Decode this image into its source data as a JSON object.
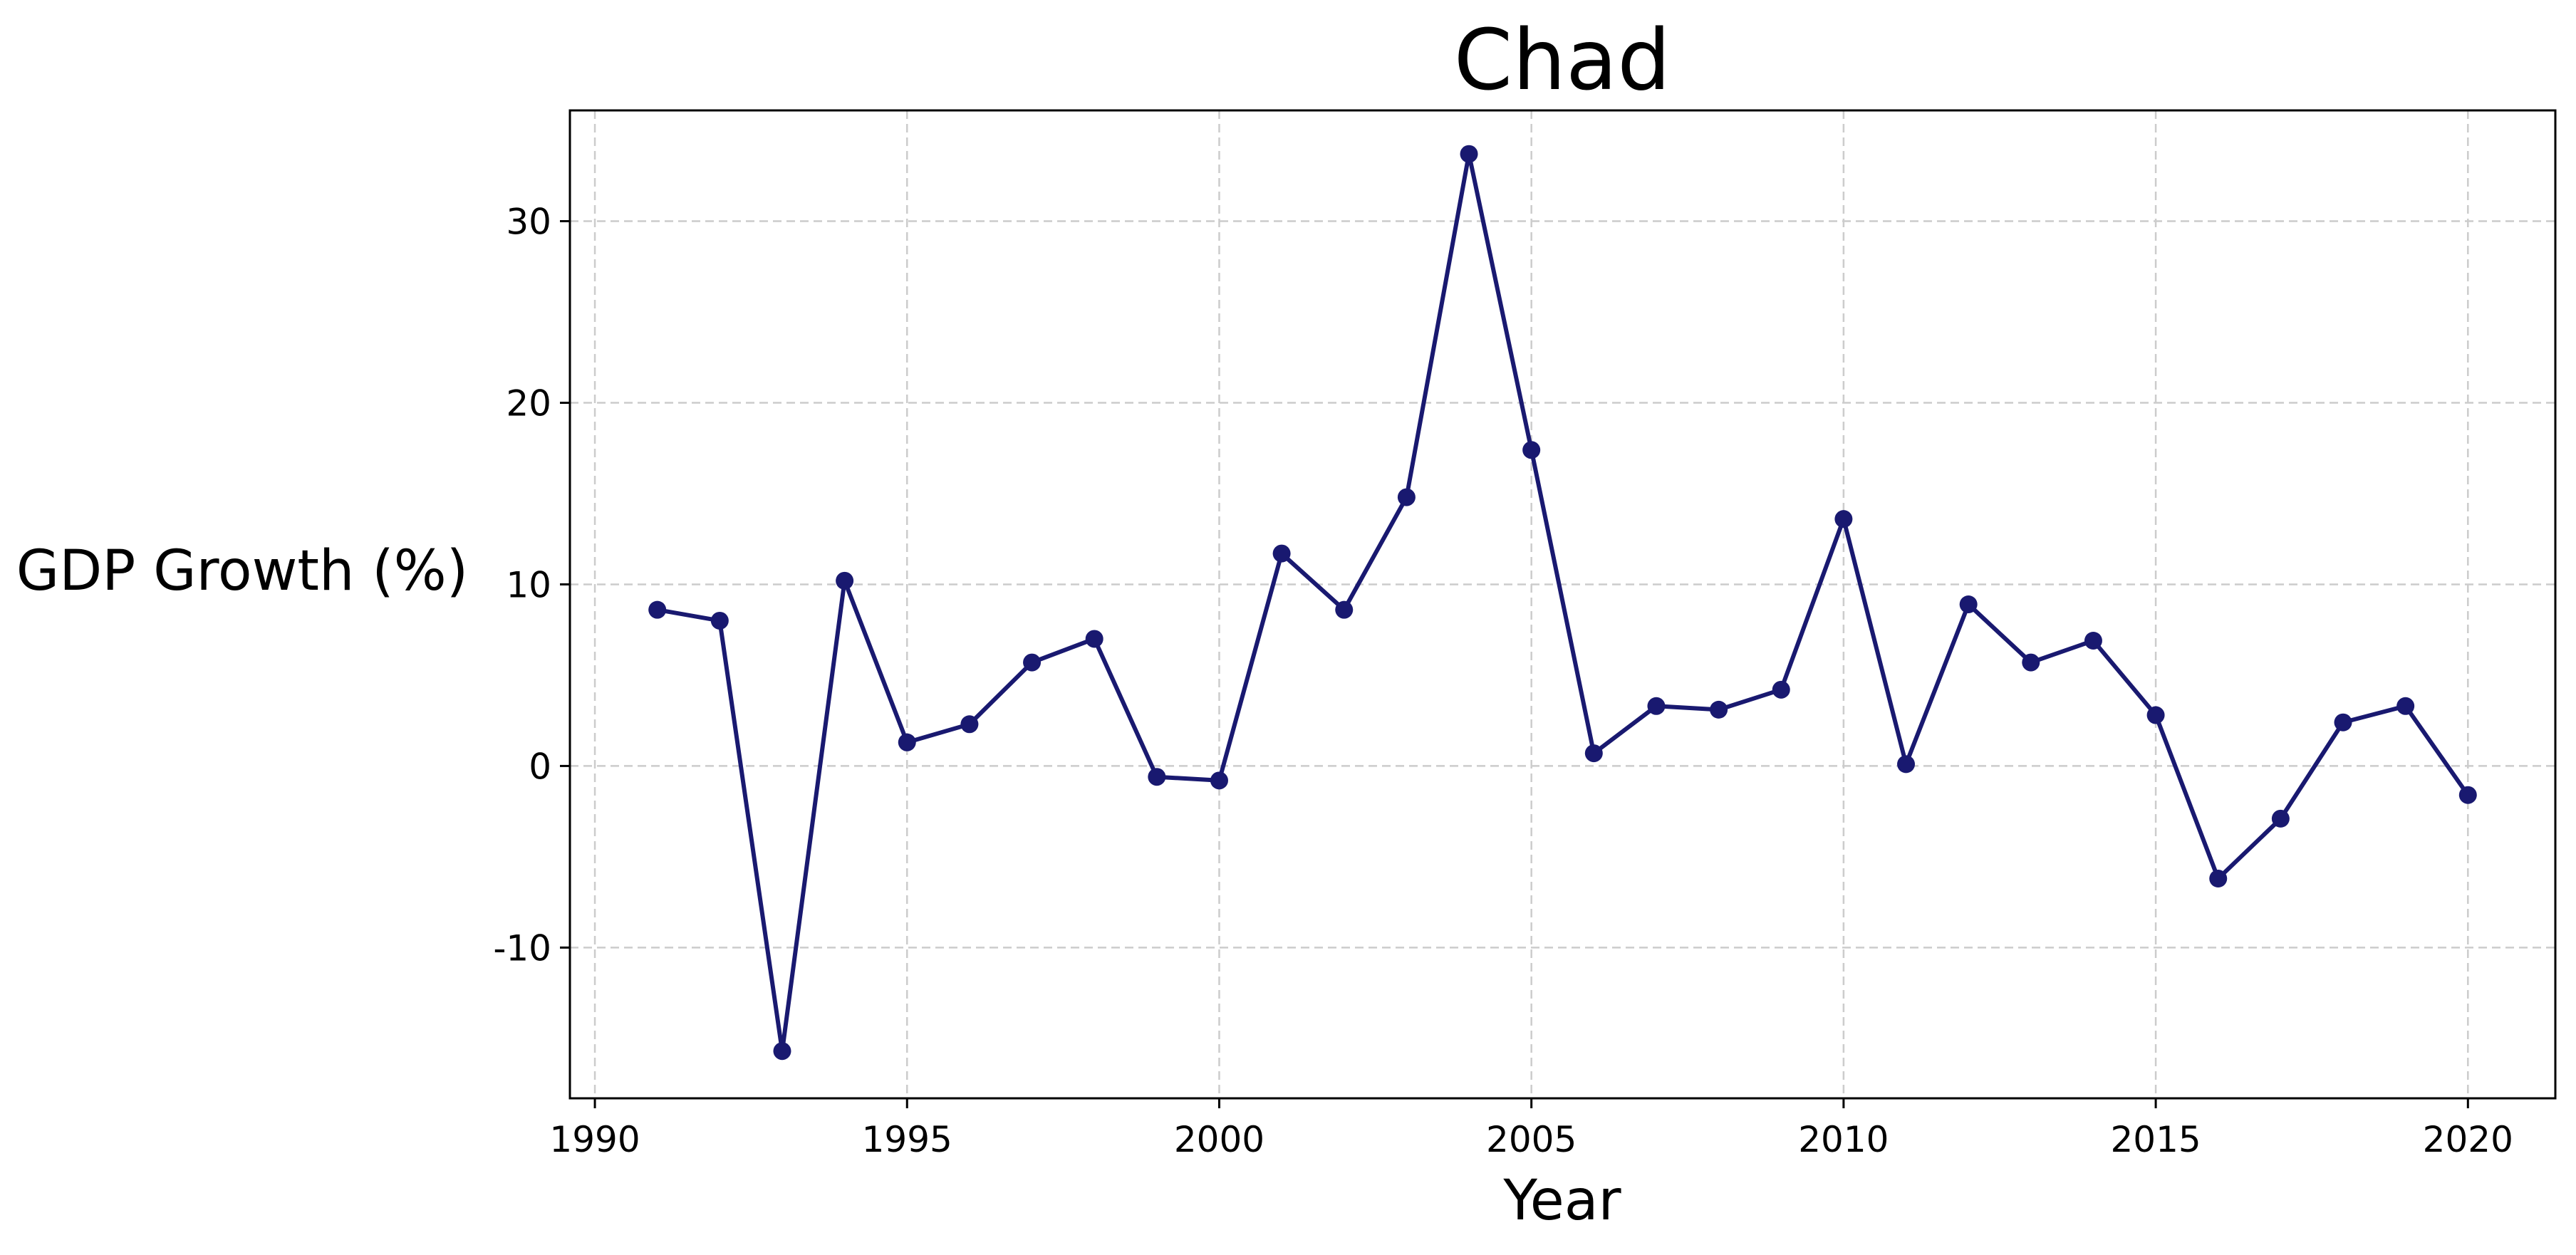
{
  "chart_data": {
    "type": "line",
    "title": "Chad",
    "xlabel": "Year",
    "ylabel": "GDP Growth (%)",
    "xlim": [
      1989.6,
      2021.4
    ],
    "ylim": [
      -18.3,
      36.1
    ],
    "xticks": [
      1990,
      1995,
      2000,
      2005,
      2010,
      2015,
      2020
    ],
    "yticks": [
      -10,
      0,
      10,
      20,
      30
    ],
    "ytick_labels": [
      "-10",
      "0",
      "10",
      "20",
      "30"
    ],
    "grid": true,
    "line_color": "#191970",
    "x": [
      1991,
      1992,
      1993,
      1994,
      1995,
      1996,
      1997,
      1998,
      1999,
      2000,
      2001,
      2002,
      2003,
      2004,
      2005,
      2006,
      2007,
      2008,
      2009,
      2010,
      2011,
      2012,
      2013,
      2014,
      2015,
      2016,
      2017,
      2018,
      2019,
      2020
    ],
    "series": [
      {
        "values": [
          8.6,
          8.0,
          -15.7,
          10.2,
          1.3,
          2.3,
          5.7,
          7.0,
          -0.6,
          -0.8,
          11.7,
          8.6,
          14.8,
          33.7,
          17.4,
          0.7,
          3.3,
          3.1,
          4.2,
          13.6,
          0.1,
          8.9,
          5.7,
          6.9,
          2.8,
          -6.2,
          -2.9,
          2.4,
          3.3,
          -1.6
        ]
      }
    ]
  }
}
